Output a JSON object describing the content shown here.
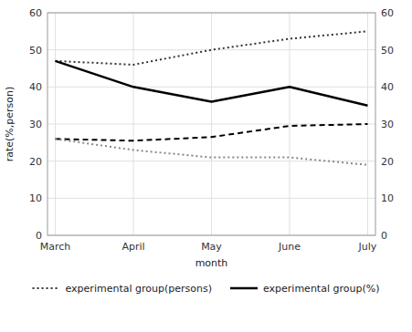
{
  "chart_data": {
    "type": "line",
    "categories": [
      "March",
      "April",
      "May",
      "June",
      "July"
    ],
    "series": [
      {
        "name": "experimental group(persons)",
        "color": "#333333",
        "line_style": "dotted",
        "values": [
          47,
          46,
          50,
          53,
          55
        ]
      },
      {
        "name": "experimental group(%)",
        "color": "#000000",
        "line_style": "solid",
        "values": [
          47,
          40,
          36,
          40,
          35
        ]
      },
      {
        "color": "#000000",
        "line_style": "dashed",
        "values": [
          26,
          25.5,
          26.5,
          29.5,
          30
        ]
      },
      {
        "color": "#888888",
        "line_style": "dotted",
        "values": [
          26,
          23,
          21,
          21,
          19
        ]
      }
    ],
    "x_label": "month",
    "y_label": "rate(%,person)",
    "ylim": [
      0,
      60
    ],
    "yticks": [
      0,
      10,
      20,
      30,
      40,
      50,
      60
    ],
    "y2lim": [
      0,
      60
    ],
    "y2ticks": [
      0,
      10,
      20,
      30,
      40,
      50,
      60
    ],
    "grid": true,
    "legend": "bottom"
  }
}
